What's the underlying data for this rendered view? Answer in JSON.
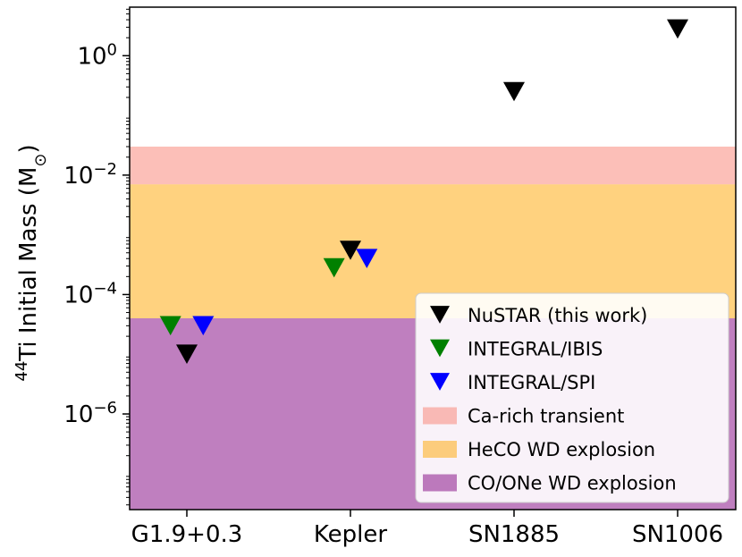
{
  "chart_data": {
    "type": "scatter",
    "title": "",
    "xlabel": "",
    "ylabel": {
      "pre": "44",
      "main": "Ti Initial Mass (M",
      "sub": "⊙",
      "post": ")"
    },
    "yscale": "log",
    "ylim": [
      2.5e-08,
      6.5
    ],
    "categories": [
      "G1.9+0.3",
      "Kepler",
      "SN1885",
      "SN1006"
    ],
    "y_ticks": [
      {
        "value": 1,
        "base": "10",
        "exp": "0"
      },
      {
        "value": 0.01,
        "base": "10",
        "exp": "−2"
      },
      {
        "value": 0.0001,
        "base": "10",
        "exp": "−4"
      },
      {
        "value": 1e-06,
        "base": "10",
        "exp": "−6"
      }
    ],
    "bands": [
      {
        "name": "Ca-rich transient",
        "y_low": 0.007,
        "y_high": 0.03,
        "color": "#fa8072",
        "alpha": 0.5
      },
      {
        "name": "HeCO WD explosion",
        "y_low": 4e-05,
        "y_high": 0.007,
        "color": "#ffa500",
        "alpha": 0.5
      },
      {
        "name": "CO/ONe WD explosion",
        "y_low": 2.5e-08,
        "y_high": 4e-05,
        "color": "#800080",
        "alpha": 0.5
      }
    ],
    "series": [
      {
        "name": "NuSTAR (this work)",
        "color": "#000000",
        "marker": "triangle-down",
        "points": [
          {
            "category": "G1.9+0.3",
            "offset": 0.0,
            "y": 1e-05
          },
          {
            "category": "Kepler",
            "offset": 0.0,
            "y": 0.00055
          },
          {
            "category": "SN1885",
            "offset": 0.0,
            "y": 0.25
          },
          {
            "category": "SN1006",
            "offset": 0.0,
            "y": 2.8
          }
        ]
      },
      {
        "name": "INTEGRAL/IBIS",
        "color": "#008000",
        "marker": "triangle-down",
        "points": [
          {
            "category": "G1.9+0.3",
            "offset": -0.1,
            "y": 3e-05
          },
          {
            "category": "Kepler",
            "offset": -0.1,
            "y": 0.00028
          }
        ]
      },
      {
        "name": "INTEGRAL/SPI",
        "color": "#0000ff",
        "marker": "triangle-down",
        "points": [
          {
            "category": "G1.9+0.3",
            "offset": 0.1,
            "y": 3e-05
          },
          {
            "category": "Kepler",
            "offset": 0.1,
            "y": 0.0004
          }
        ]
      }
    ],
    "legend": {
      "placement": "lower-right",
      "entries": [
        {
          "label": "NuSTAR (this work)",
          "kind": "marker",
          "color": "#000000"
        },
        {
          "label": "INTEGRAL/IBIS",
          "kind": "marker",
          "color": "#008000"
        },
        {
          "label": "INTEGRAL/SPI",
          "kind": "marker",
          "color": "#0000ff"
        },
        {
          "label": "Ca-rich transient",
          "kind": "patch",
          "color": "#fa8072",
          "alpha": 0.5
        },
        {
          "label": "HeCO WD explosion",
          "kind": "patch",
          "color": "#ffa500",
          "alpha": 0.5
        },
        {
          "label": "CO/ONe WD explosion",
          "kind": "patch",
          "color": "#800080",
          "alpha": 0.5
        }
      ]
    }
  }
}
